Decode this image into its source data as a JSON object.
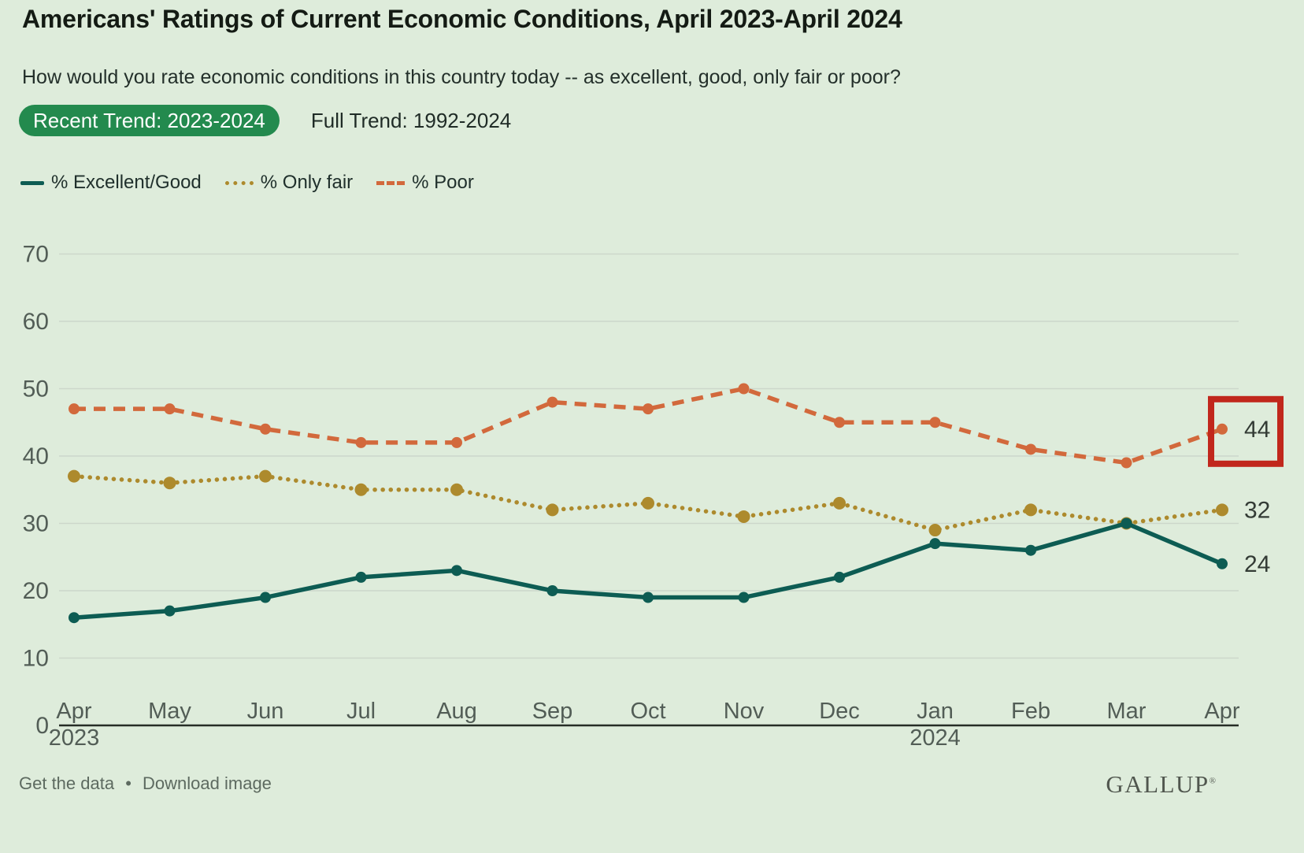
{
  "title": "Americans' Ratings of Current Economic Conditions, April 2023-April 2024",
  "subtitle": "How would you rate economic conditions in this country today -- as excellent, good, only fair or poor?",
  "tabs": {
    "recent": {
      "label": "Recent Trend: 2023-2024",
      "active": true,
      "background": "#238a4e"
    },
    "full": {
      "label": "Full Trend: 1992-2024",
      "active": false
    }
  },
  "chart_data": {
    "type": "line",
    "categories": [
      "Apr",
      "May",
      "Jun",
      "Jul",
      "Aug",
      "Sep",
      "Oct",
      "Nov",
      "Dec",
      "Jan",
      "Feb",
      "Mar",
      "Apr"
    ],
    "category_sub_labels": {
      "0": "2023",
      "9": "2024"
    },
    "series": [
      {
        "name": "% Excellent/Good",
        "key": "excellent-good",
        "color": "#0d5c53",
        "style": "solid",
        "values": [
          16,
          17,
          19,
          22,
          23,
          20,
          19,
          19,
          22,
          27,
          26,
          30,
          24
        ],
        "end_label": "24"
      },
      {
        "name": "% Only fair",
        "key": "only-fair",
        "color": "#ad8a2d",
        "style": "dotted",
        "values": [
          37,
          36,
          37,
          35,
          35,
          32,
          33,
          31,
          33,
          29,
          32,
          30,
          32
        ],
        "end_label": "32"
      },
      {
        "name": "% Poor",
        "key": "poor",
        "color": "#d2693c",
        "style": "dashed",
        "values": [
          47,
          47,
          44,
          42,
          42,
          48,
          47,
          50,
          45,
          45,
          41,
          39,
          44
        ],
        "end_label": "44"
      }
    ],
    "ylim": [
      0,
      70
    ],
    "yticks": [
      0,
      10,
      20,
      30,
      40,
      50,
      60,
      70
    ],
    "grid": true,
    "legend_position": "top-left",
    "annotation": {
      "type": "highlight-box",
      "series": "poor",
      "point_index": 12,
      "value": 44,
      "color": "#c1271c"
    }
  },
  "footer": {
    "get_data": "Get the data",
    "separator": "•",
    "download": "Download image",
    "brand": "GALLUP",
    "brand_mark": "®"
  }
}
